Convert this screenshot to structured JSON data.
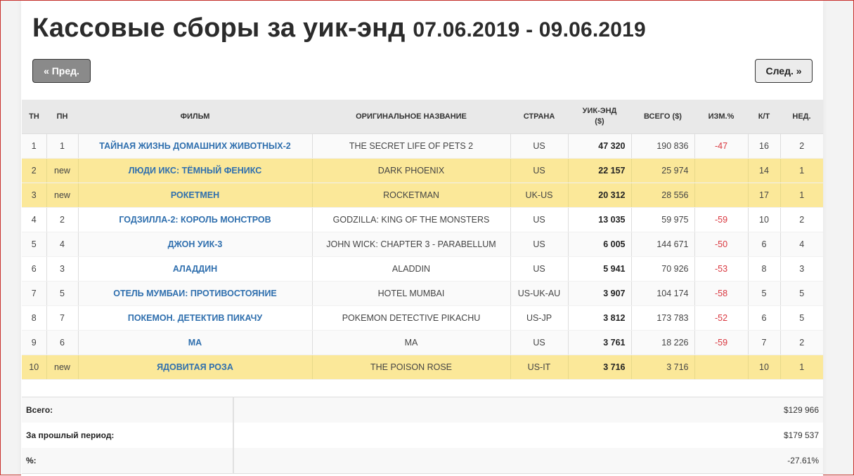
{
  "header": {
    "title": "Кассовые сборы за уик-энд",
    "dates": "07.06.2019 - 09.06.2019"
  },
  "nav": {
    "prev_label": "« Пред.",
    "next_label": "След. »"
  },
  "table": {
    "columns": [
      "ТН",
      "ПН",
      "ФИЛЬМ",
      "ОРИГИНАЛЬНОЕ НАЗВАНИЕ",
      "СТРАНА",
      "УИК-ЭНД ($)",
      "ВСЕГО ($)",
      "ИЗМ.%",
      "К/Т",
      "НЕД."
    ],
    "rows": [
      {
        "tw": "1",
        "lw": "1",
        "film": "ТАЙНАЯ ЖИЗНЬ ДОМАШНИХ ЖИВОТНЫХ-2",
        "original": "THE SECRET LIFE OF PETS 2",
        "country": "US",
        "weekend": "47 320",
        "total": "190 836",
        "change": "-47",
        "screens": "16",
        "weeks": "2",
        "is_new": false
      },
      {
        "tw": "2",
        "lw": "new",
        "film": "ЛЮДИ ИКС: ТЁМНЫЙ ФЕНИКС",
        "original": "DARK PHOENIX",
        "country": "US",
        "weekend": "22 157",
        "total": "25 974",
        "change": "",
        "screens": "14",
        "weeks": "1",
        "is_new": true
      },
      {
        "tw": "3",
        "lw": "new",
        "film": "РОКЕТМЕН",
        "original": "ROCKETMAN",
        "country": "UK-US",
        "weekend": "20 312",
        "total": "28 556",
        "change": "",
        "screens": "17",
        "weeks": "1",
        "is_new": true
      },
      {
        "tw": "4",
        "lw": "2",
        "film": "ГОДЗИЛЛА-2: КОРОЛЬ МОНСТРОВ",
        "original": "GODZILLA: KING OF THE MONSTERS",
        "country": "US",
        "weekend": "13 035",
        "total": "59 975",
        "change": "-59",
        "screens": "10",
        "weeks": "2",
        "is_new": false
      },
      {
        "tw": "5",
        "lw": "4",
        "film": "ДЖОН УИК-3",
        "original": "JOHN WICK: CHAPTER 3 - PARABELLUM",
        "country": "US",
        "weekend": "6 005",
        "total": "144 671",
        "change": "-50",
        "screens": "6",
        "weeks": "4",
        "is_new": false
      },
      {
        "tw": "6",
        "lw": "3",
        "film": "АЛАДДИН",
        "original": "ALADDIN",
        "country": "US",
        "weekend": "5 941",
        "total": "70 926",
        "change": "-53",
        "screens": "8",
        "weeks": "3",
        "is_new": false
      },
      {
        "tw": "7",
        "lw": "5",
        "film": "ОТЕЛЬ МУМБАИ: ПРОТИВОСТОЯНИЕ",
        "original": "HOTEL MUMBAI",
        "country": "US-UK-AU",
        "weekend": "3 907",
        "total": "104 174",
        "change": "-58",
        "screens": "5",
        "weeks": "5",
        "is_new": false
      },
      {
        "tw": "8",
        "lw": "7",
        "film": "ПОКЕМОН. ДЕТЕКТИВ ПИКАЧУ",
        "original": "POKEMON DETECTIVE PIKACHU",
        "country": "US-JP",
        "weekend": "3 812",
        "total": "173 783",
        "change": "-52",
        "screens": "6",
        "weeks": "5",
        "is_new": false
      },
      {
        "tw": "9",
        "lw": "6",
        "film": "МА",
        "original": "MA",
        "country": "US",
        "weekend": "3 761",
        "total": "18 226",
        "change": "-59",
        "screens": "7",
        "weeks": "2",
        "is_new": false
      },
      {
        "tw": "10",
        "lw": "new",
        "film": "ЯДОВИТАЯ РОЗА",
        "original": "THE POISON ROSE",
        "country": "US-IT",
        "weekend": "3 716",
        "total": "3 716",
        "change": "",
        "screens": "10",
        "weeks": "1",
        "is_new": true
      }
    ]
  },
  "summary": [
    {
      "label": "Всего:",
      "value": "$129 966"
    },
    {
      "label": "За прошлый период:",
      "value": "$179 537"
    },
    {
      "label": "%:",
      "value": "-27.61%"
    }
  ],
  "colors": {
    "new_row": "#fbe899",
    "film_link": "#2f6fae",
    "negative": "#d9363e",
    "prev_button": "#8a8a8a"
  }
}
